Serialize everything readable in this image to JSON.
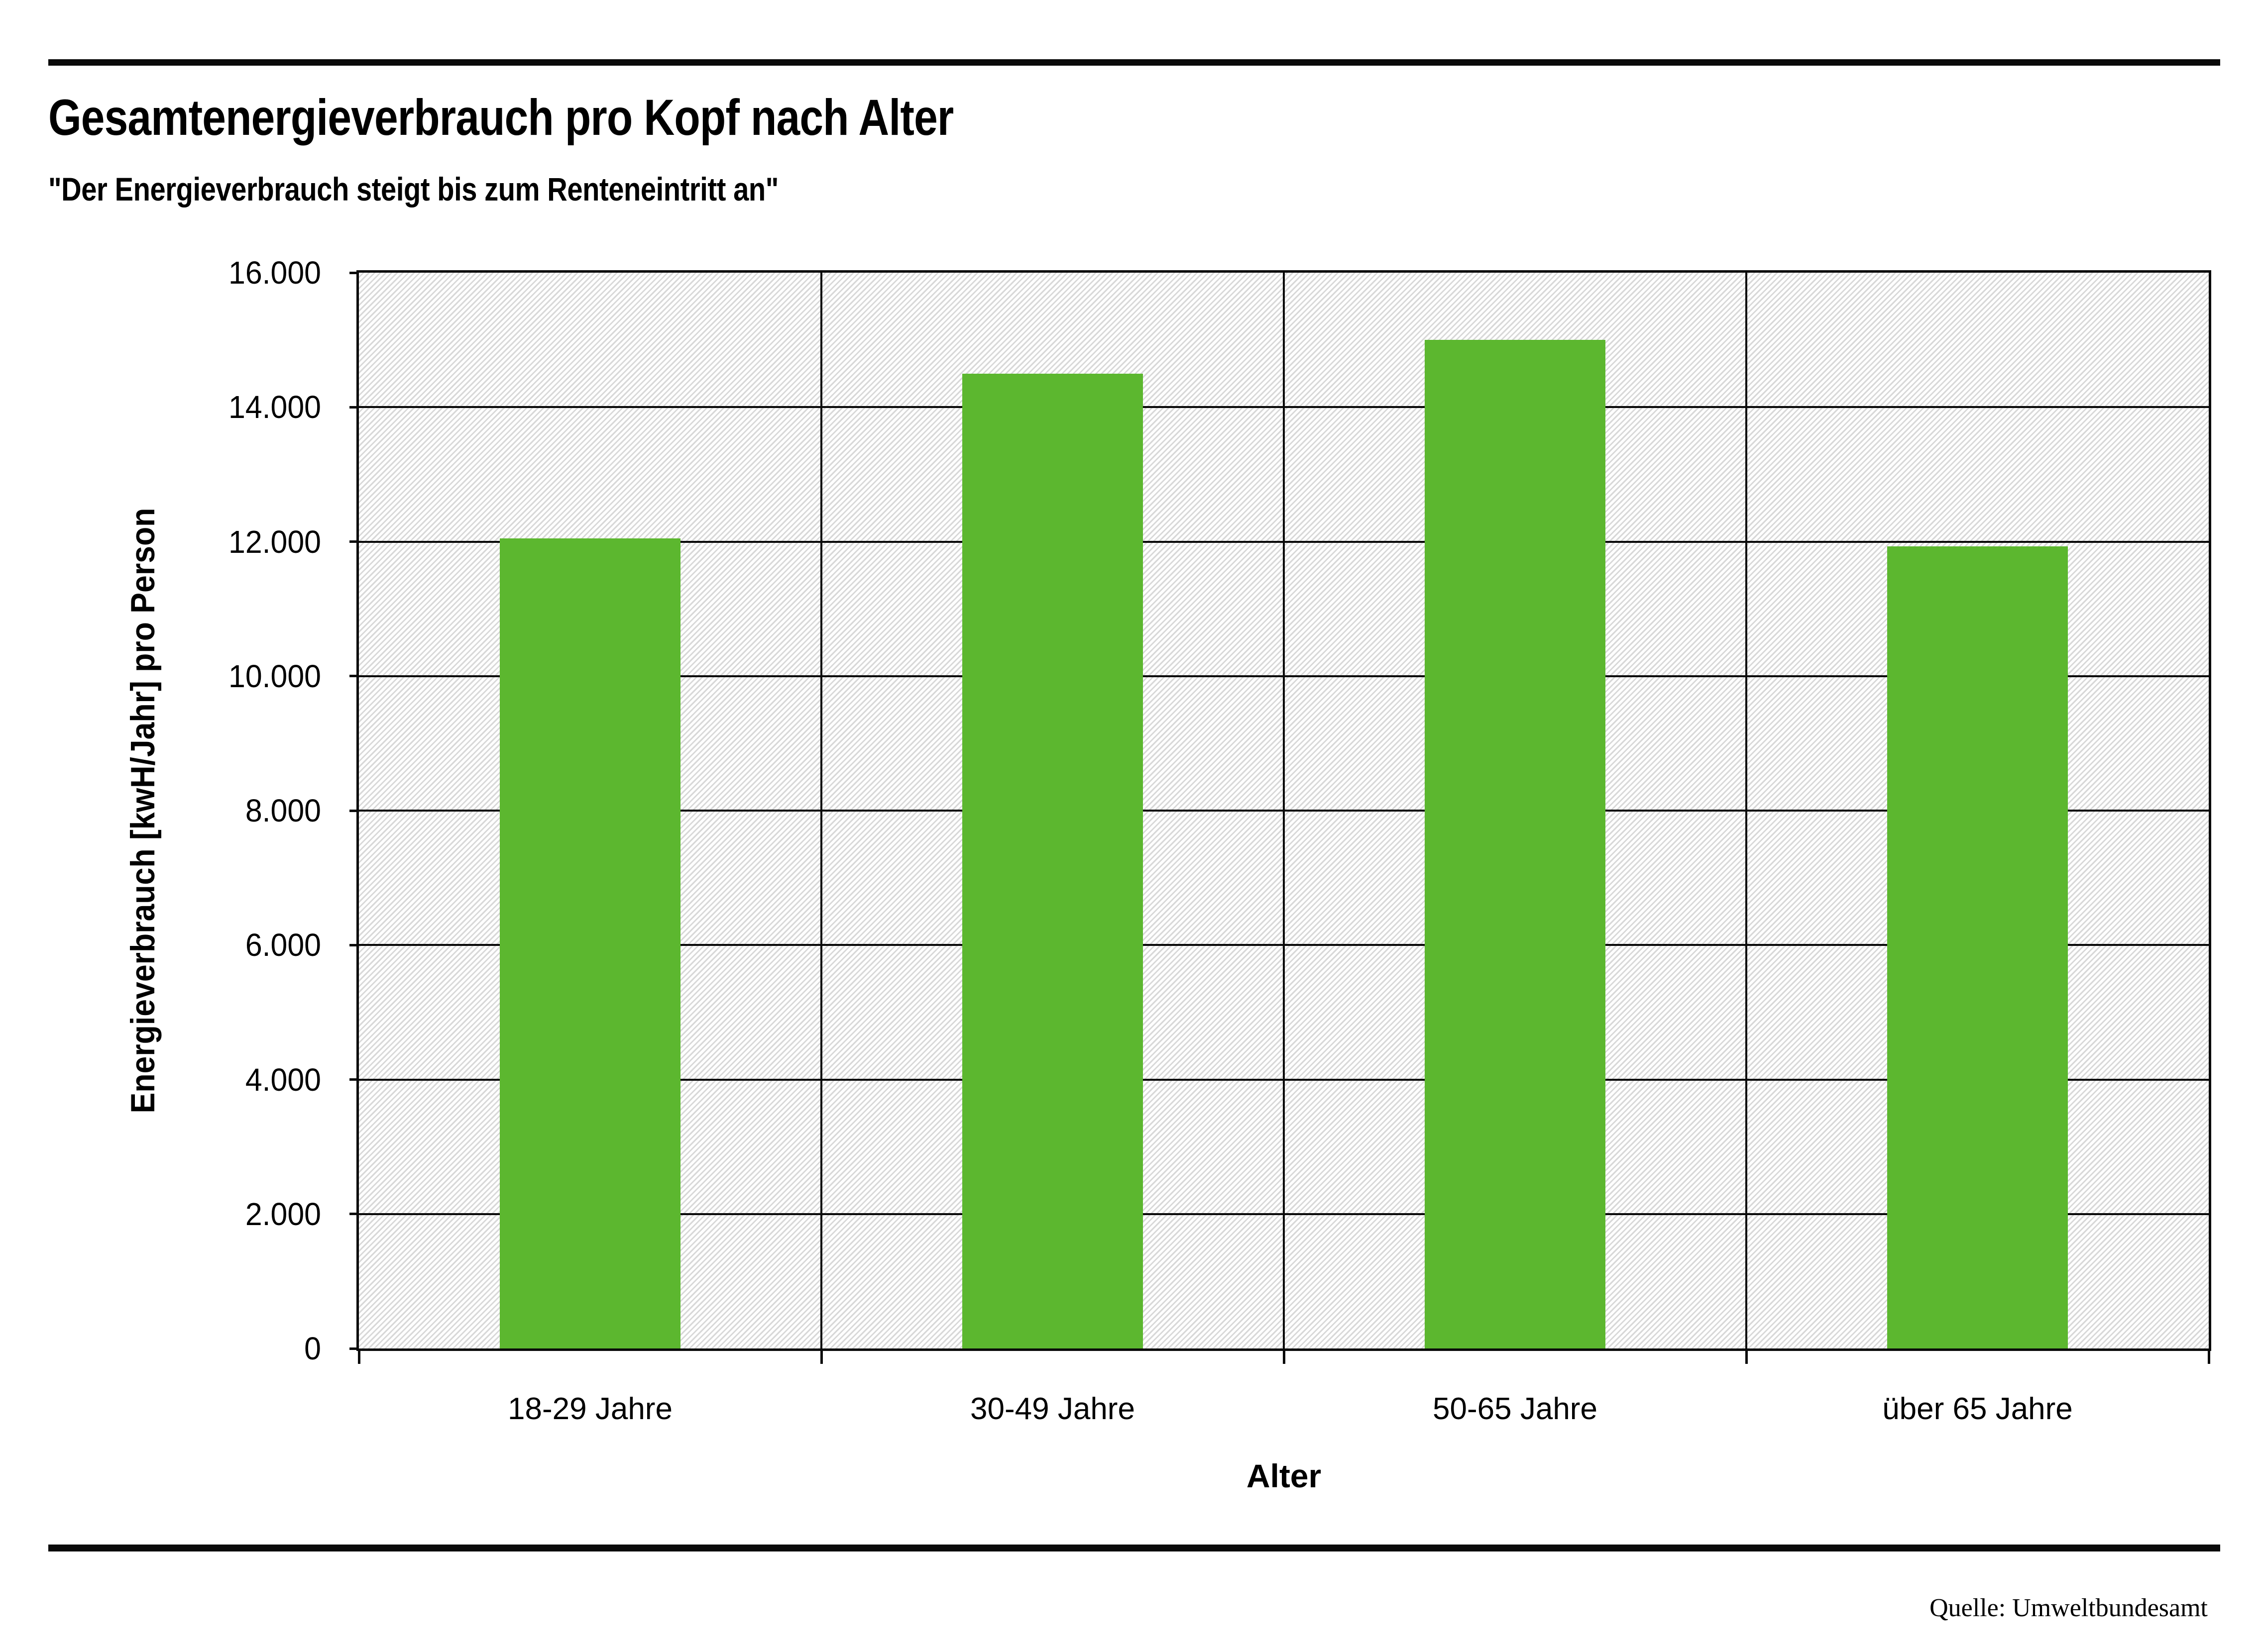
{
  "header": {
    "title": "Gesamtenergieverbrauch pro Kopf nach Alter",
    "subtitle": "\"Der Energieverbrauch steigt bis zum Renteneintritt an\""
  },
  "chart_data": {
    "type": "bar",
    "title": "Gesamtenergieverbrauch pro Kopf nach Alter",
    "subtitle": "\"Der Energieverbrauch steigt bis zum Renteneintritt an\"",
    "categories": [
      "18-29 Jahre",
      "30-49 Jahre",
      "50-65 Jahre",
      "über 65 Jahre"
    ],
    "values": [
      12050,
      14500,
      15000,
      11930
    ],
    "xlabel": "Alter",
    "ylabel": "Energieverbrauch [kwH/Jahr] pro Person",
    "ylim": [
      0,
      16000
    ],
    "ytick_step": 2000,
    "yticks": [
      {
        "value": 0,
        "label": "0"
      },
      {
        "value": 2000,
        "label": "2.000"
      },
      {
        "value": 4000,
        "label": "4.000"
      },
      {
        "value": 6000,
        "label": "6.000"
      },
      {
        "value": 8000,
        "label": "8.000"
      },
      {
        "value": 10000,
        "label": "10.000"
      },
      {
        "value": 12000,
        "label": "12.000"
      },
      {
        "value": 14000,
        "label": "14.000"
      },
      {
        "value": 16000,
        "label": "16.000"
      }
    ],
    "grid": "horizontal lines at every 2.000, vertical category separators, black",
    "plot_background": "white with light gray diagonal hatching",
    "legend_position": "none",
    "bar_color": "#5cb72f"
  },
  "colors": {
    "bar": "#5cb72f",
    "line": "#0a0a0a",
    "hatch_stripe": "#d8d8d8",
    "background": "#ffffff"
  },
  "footer": {
    "source": "Quelle: Umweltbundesamt"
  }
}
